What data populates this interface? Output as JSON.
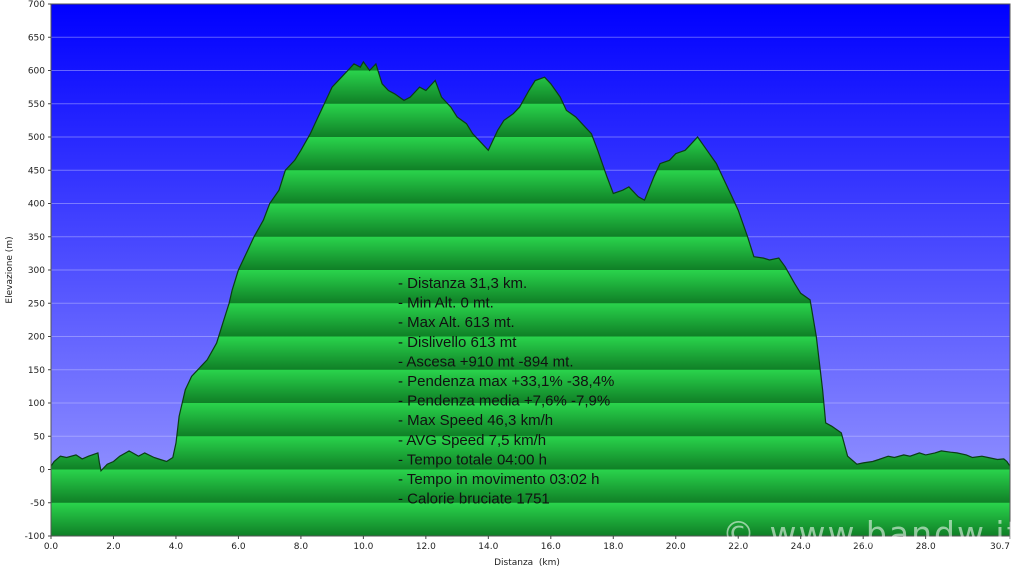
{
  "chart_data": {
    "type": "area",
    "xlabel": "Distanza  (km)",
    "ylabel": "Elevazione (m)",
    "xlim": [
      0,
      30.7
    ],
    "ylim": [
      -100,
      700
    ],
    "x_ticks": [
      "0.0",
      "2.0",
      "4.0",
      "6.0",
      "8.0",
      "10.0",
      "12.0",
      "14.0",
      "16.0",
      "18.0",
      "20.0",
      "22.0",
      "24.0",
      "26.0",
      "28.0",
      "30.7"
    ],
    "y_ticks": [
      "700",
      "650",
      "600",
      "550",
      "500",
      "450",
      "400",
      "350",
      "300",
      "250",
      "200",
      "150",
      "100",
      "50",
      "0",
      "-50",
      "-100"
    ],
    "grid": true,
    "colors": {
      "sky_top": "#0000ff",
      "sky_bottom": "#a0a0ff",
      "fill_light": "#22c244",
      "fill_dark": "#118a2a",
      "line": "#0b3d14"
    },
    "series": [
      {
        "x": [
          0.0,
          0.1,
          0.3,
          0.5,
          0.8,
          1.0,
          1.2,
          1.5,
          1.55,
          1.6,
          1.8,
          2.0,
          2.2,
          2.5,
          2.8,
          3.0,
          3.3,
          3.5,
          3.7,
          3.9,
          4.0,
          4.1,
          4.3,
          4.5,
          4.7,
          4.8,
          5.0,
          5.3,
          5.5,
          5.7,
          5.8,
          6.0,
          6.3,
          6.5,
          6.8,
          7.0,
          7.3,
          7.5,
          7.8,
          8.0,
          8.3,
          8.5,
          8.8,
          9.0,
          9.3,
          9.5,
          9.7,
          9.9,
          10.0,
          10.2,
          10.4,
          10.6,
          10.8,
          11.0,
          11.3,
          11.5,
          11.8,
          12.0,
          12.3,
          12.5,
          12.8,
          13.0,
          13.3,
          13.5,
          13.8,
          14.0,
          14.3,
          14.5,
          14.8,
          15.0,
          15.3,
          15.5,
          15.8,
          16.0,
          16.3,
          16.5,
          16.8,
          17.0,
          17.3,
          17.5,
          17.8,
          18.0,
          18.3,
          18.5,
          18.8,
          19.0,
          19.3,
          19.5,
          19.8,
          20.0,
          20.3,
          20.5,
          20.7,
          21.0,
          21.3,
          21.5,
          21.8,
          22.0,
          22.3,
          22.5,
          22.8,
          23.0,
          23.3,
          23.5,
          23.8,
          24.0,
          24.3,
          24.5,
          24.7,
          24.8,
          25.0,
          25.3,
          25.5,
          25.8,
          26.0,
          26.3,
          26.5,
          26.8,
          27.0,
          27.3,
          27.5,
          27.8,
          28.0,
          28.3,
          28.5,
          28.8,
          29.0,
          29.3,
          29.5,
          29.8,
          30.0,
          30.3,
          30.5,
          30.6,
          30.7
        ],
        "y": [
          5,
          12,
          20,
          18,
          22,
          16,
          20,
          25,
          10,
          -2,
          8,
          12,
          20,
          28,
          20,
          25,
          18,
          15,
          12,
          18,
          40,
          80,
          120,
          140,
          150,
          155,
          165,
          190,
          220,
          250,
          270,
          300,
          330,
          350,
          375,
          400,
          420,
          450,
          465,
          480,
          505,
          525,
          555,
          575,
          590,
          600,
          610,
          605,
          613,
          600,
          610,
          580,
          570,
          565,
          555,
          560,
          575,
          570,
          585,
          560,
          545,
          530,
          520,
          505,
          490,
          480,
          510,
          525,
          535,
          545,
          570,
          585,
          590,
          580,
          560,
          540,
          530,
          520,
          505,
          480,
          440,
          415,
          420,
          425,
          410,
          405,
          440,
          460,
          465,
          475,
          480,
          490,
          500,
          480,
          460,
          440,
          410,
          390,
          350,
          320,
          318,
          315,
          318,
          305,
          280,
          265,
          255,
          200,
          120,
          70,
          65,
          55,
          20,
          8,
          10,
          12,
          15,
          20,
          18,
          22,
          20,
          25,
          22,
          25,
          28,
          26,
          25,
          22,
          18,
          20,
          18,
          15,
          16,
          12,
          5
        ]
      }
    ],
    "annotations": [
      "- Distanza 31,3 km.",
      "- Min Alt. 0 mt.",
      "- Max Alt. 613 mt.",
      "- Dislivello 613 mt",
      "- Ascesa +910 mt -894 mt.",
      "- Pendenza max +33,1% -38,4%",
      "- Pendenza media +7,6% -7,9%",
      "- Max Speed 46,3 km/h",
      "- AVG Speed 7,5 km/h",
      "- Tempo totale 04:00 h",
      "- Tempo in movimento 03:02 h",
      "- Calorie bruciate 1751"
    ]
  },
  "watermark": "© www.bandw.it"
}
